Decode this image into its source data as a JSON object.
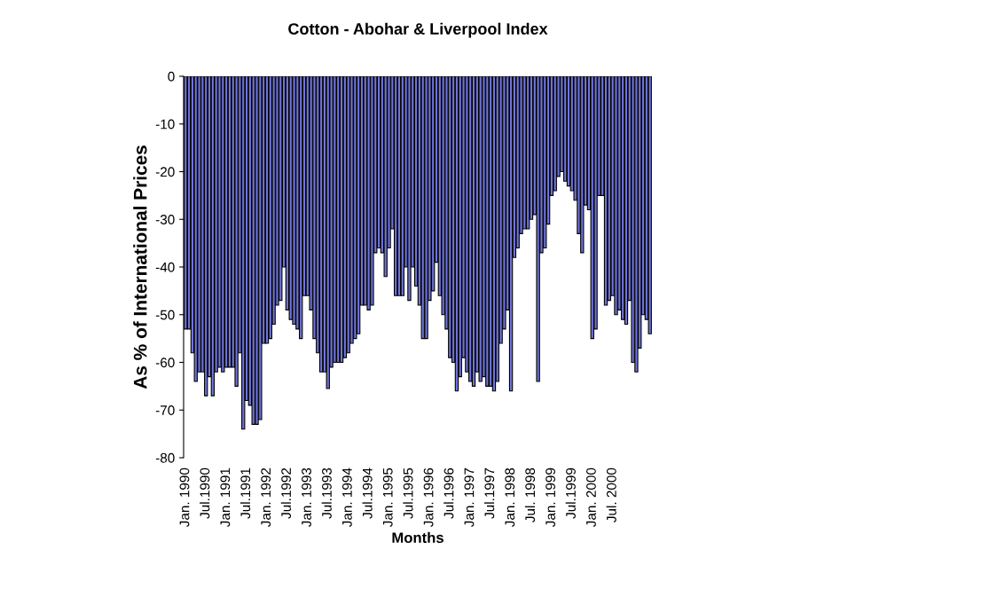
{
  "chart_data": {
    "type": "bar",
    "title": "Cotton - Abohar & Liverpool Index",
    "xlabel": "Months",
    "ylabel": "As % of International Prices",
    "categories": [
      "Jan. 1990",
      null,
      null,
      null,
      null,
      null,
      "Jul.1990",
      null,
      null,
      null,
      null,
      null,
      "Jan. 1991",
      null,
      null,
      null,
      null,
      null,
      "Jul.1991",
      null,
      null,
      null,
      null,
      null,
      "Jan. 1992",
      null,
      null,
      null,
      null,
      null,
      "Jul.1992",
      null,
      null,
      null,
      null,
      null,
      "Jan. 1993",
      null,
      null,
      null,
      null,
      null,
      "Jul.1993",
      null,
      null,
      null,
      null,
      null,
      "Jan. 1994",
      null,
      null,
      null,
      null,
      null,
      "Jul.1994",
      null,
      null,
      null,
      null,
      null,
      "Jan. 1995",
      null,
      null,
      null,
      null,
      null,
      "Jul.1995",
      null,
      null,
      null,
      null,
      null,
      "Jan. 1996",
      null,
      null,
      null,
      null,
      null,
      "Jul.1996",
      null,
      null,
      null,
      null,
      null,
      "Jan. 1997",
      null,
      null,
      null,
      null,
      null,
      "Jul.1997",
      null,
      null,
      null,
      null,
      null,
      "Jan. 1998",
      null,
      null,
      null,
      null,
      null,
      "Jul. 1998",
      null,
      null,
      null,
      null,
      null,
      "Jan. 1999",
      null,
      null,
      null,
      null,
      null,
      "Jul.1999",
      null,
      null,
      null,
      null,
      null,
      "Jan. 2000",
      null,
      null,
      null,
      null,
      null,
      "Jul. 2000",
      null,
      null,
      null,
      null,
      null,
      null,
      null,
      null,
      null,
      null,
      null
    ],
    "values": [
      -53,
      -53,
      -58,
      -64,
      -62,
      -62,
      -67,
      -63,
      -67,
      -62,
      -61,
      -62,
      -61,
      -61,
      -61,
      -65,
      -58,
      -74,
      -68,
      -69,
      -73,
      -73,
      -72,
      -56,
      -56,
      -55,
      -52,
      -48,
      -47,
      -40,
      -49,
      -51,
      -52,
      -53,
      -55,
      -46,
      -46,
      -49,
      -55,
      -58,
      -62,
      -62,
      -65.5,
      -61,
      -60,
      -60,
      -60,
      -59,
      -58,
      -56,
      -55,
      -54,
      -48,
      -48,
      -49,
      -48,
      -37,
      -36,
      -37,
      -42,
      -36,
      -32,
      -46,
      -46,
      -46,
      -40,
      -47,
      -40,
      -44,
      -48,
      -55,
      -55,
      -47,
      -45,
      -39,
      -46,
      -50,
      -53,
      -59,
      -60,
      -66,
      -63,
      -59,
      -62,
      -64,
      -65,
      -62,
      -64,
      -63,
      -65,
      -65,
      -66,
      -64,
      -56,
      -53,
      -49,
      -66,
      -38,
      -36,
      -33,
      -32,
      -32,
      -30,
      -29,
      -64,
      -37,
      -36,
      -31,
      -25,
      -24,
      -21,
      -20,
      -22,
      -23,
      -24,
      -26,
      -33,
      -37,
      -27,
      -28,
      -55,
      -53,
      -25,
      -25,
      -48,
      -47,
      -46,
      -50,
      -49,
      -51,
      -52,
      -47,
      -60,
      -62,
      -57,
      -50,
      -51,
      -54
    ],
    "color": "#7075d8",
    "ylim": [
      -80,
      0
    ],
    "yticks": [
      -80,
      -70,
      -60,
      -50,
      -40,
      -30,
      -20,
      -10,
      0
    ],
    "grid": false,
    "legend": false
  }
}
